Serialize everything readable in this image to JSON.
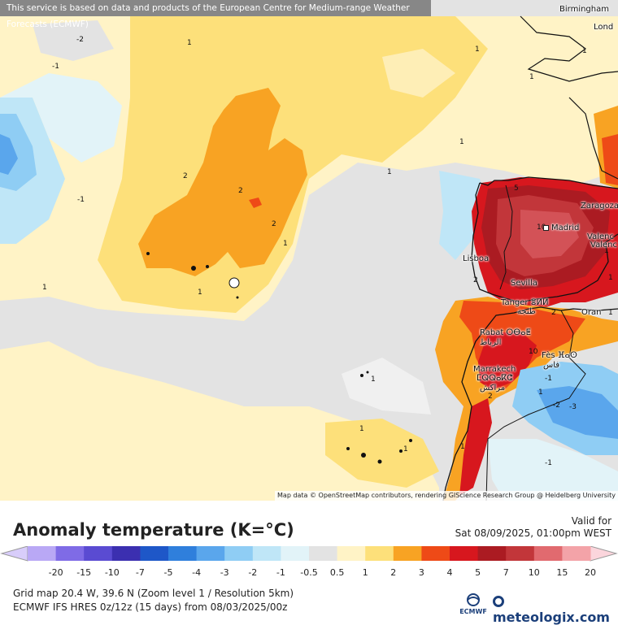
{
  "banner": "This service is based on data and products of the European Centre for Medium-range Weather Forecasts (ECMWF)",
  "attribution": "Map data © OpenStreetMap contributors, rendering GIScience Research Group @ Heidelberg University",
  "cities": [
    {
      "id": "birmingham",
      "name": "Birmingham"
    },
    {
      "id": "london",
      "name": "Lond"
    },
    {
      "id": "madrid",
      "name": "Madrid"
    },
    {
      "id": "zaragoza",
      "name": "Zaragoza"
    },
    {
      "id": "valencia1",
      "name": "Valenc"
    },
    {
      "id": "valencia2",
      "name": "Valenc"
    },
    {
      "id": "lisboa",
      "name": "Lisboa"
    },
    {
      "id": "sevilla",
      "name": "Sevilla"
    },
    {
      "id": "tanger",
      "name": "Tanger ⴻⵍⵍ"
    },
    {
      "id": "tanger_ar",
      "name": "طنجة"
    },
    {
      "id": "oran",
      "name": "Oran"
    },
    {
      "id": "rabat",
      "name": "Rabat ⵔⴱⴰⵟ"
    },
    {
      "id": "rabat_ar",
      "name": "الرباط"
    },
    {
      "id": "fes",
      "name": "Fès ⴼⴰⵙ"
    },
    {
      "id": "fes_ar",
      "name": "فاس"
    },
    {
      "id": "marrakech",
      "name": "Marrakech"
    },
    {
      "id": "marrakech_tz",
      "name": "ⵎⵕⵕⴰⴽⵛ"
    },
    {
      "id": "marrakech_ar",
      "name": "مراكش"
    }
  ],
  "contour_labels": [
    "-2",
    "-1",
    "1",
    "1",
    "1",
    "1",
    "1",
    "1",
    "1",
    "1",
    "2",
    "2",
    "2",
    "1",
    "-1",
    "1",
    "1",
    "1",
    "1",
    "1",
    "5",
    "10",
    "2",
    "2",
    "10",
    "2",
    "1",
    "-1",
    "-2",
    "-3",
    "-1",
    "1",
    "1"
  ],
  "title": "Anomaly temperature (K=°C)",
  "valid_label": "Valid for",
  "valid_time": "Sat 08/09/2025, 01:00pm WEST",
  "legend": {
    "ticks": [
      "-20",
      "-15",
      "-10",
      "-7",
      "-5",
      "-4",
      "-3",
      "-2",
      "-1",
      "-0.5",
      "0.5",
      "1",
      "2",
      "3",
      "4",
      "5",
      "7",
      "10",
      "15",
      "20"
    ],
    "colors": [
      "#b9a8f5",
      "#7f6be6",
      "#5a4bd2",
      "#3b2fb0",
      "#1e57c8",
      "#2f7fdc",
      "#5aa6ec",
      "#8fcdf4",
      "#bfe6f7",
      "#e2f3f8",
      "#e3e3e3",
      "#fff3c6",
      "#fde07a",
      "#f8a323",
      "#ee4a17",
      "#d7171e",
      "#ab1b22",
      "#c2363a",
      "#e16a6f",
      "#f3a3a8"
    ],
    "low_color": "#d8cdfa",
    "high_color": "#fbd5dc"
  },
  "info": {
    "line1": "Grid map 20.4 W, 39.6 N (Zoom level 1 / Resolution 5km)",
    "line2": "ECMWF IFS HRES 0z/12z (15 days) from 08/03/2025/00z"
  },
  "ecmwf_label": "ECMWF",
  "brand": "meteologix.com"
}
